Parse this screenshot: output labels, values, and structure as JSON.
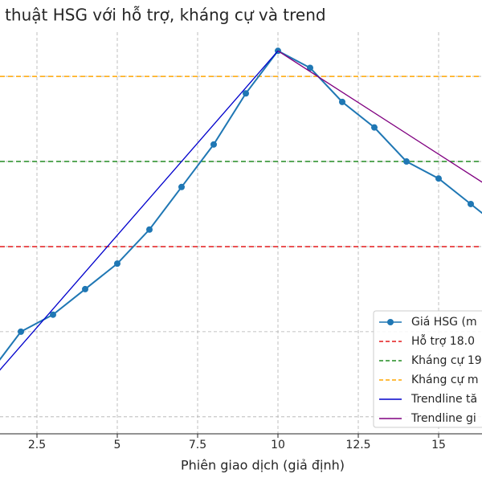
{
  "chart_data": {
    "type": "line",
    "title": "Biểu đồ kỹ thuật HSG với hỗ trợ, kháng cự và trend",
    "x_label": "Phiên giao dịch (giả định)",
    "xlim": [
      1.35,
      16.35
    ],
    "xticks": [
      2.5,
      5.0,
      7.5,
      10.0,
      12.5,
      15.0
    ],
    "ylim": [
      15.8,
      20.52
    ],
    "yticks": [
      16,
      17,
      18,
      19,
      20
    ],
    "grid": true,
    "legend": "lower right",
    "series": [
      {
        "name": "Giá HSG (m",
        "color": "#1f77b4",
        "marker": true,
        "x": [
          1,
          2,
          3,
          4,
          5,
          6,
          7,
          8,
          9,
          10,
          11,
          12,
          13,
          14,
          15,
          16,
          17
        ],
        "values": [
          16.5,
          17.0,
          17.2,
          17.5,
          17.8,
          18.2,
          18.7,
          19.2,
          19.8,
          20.3,
          20.1,
          19.7,
          19.4,
          19.0,
          18.8,
          18.5,
          18.2
        ]
      },
      {
        "name": "Trendline tă",
        "color": "#0000cc",
        "marker": false,
        "x": [
          1,
          10
        ],
        "values": [
          16.4,
          20.3
        ]
      },
      {
        "name": "Trendline gi",
        "color": "#800080",
        "marker": false,
        "x": [
          10,
          17
        ],
        "values": [
          20.3,
          18.6
        ]
      }
    ],
    "hlines": [
      {
        "name": "Hỗ trợ 18.0",
        "color": "#e31a1c",
        "value": 18
      },
      {
        "name": "Kháng cự 19",
        "color": "#228b22",
        "value": 19
      },
      {
        "name": "Kháng cự m",
        "color": "#ffa500",
        "value": 20
      }
    ]
  }
}
